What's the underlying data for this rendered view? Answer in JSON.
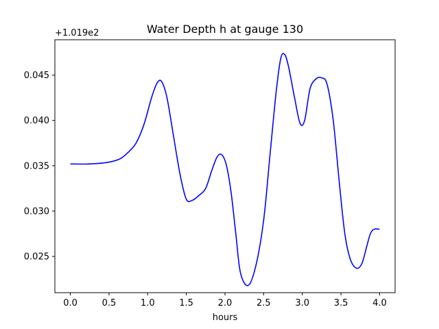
{
  "chart_data": {
    "type": "line",
    "title": "Water Depth h at gauge 130",
    "xlabel": "hours",
    "ylabel": "",
    "y_offset_label": "+1.019e2",
    "xlim": [
      -0.2,
      4.2
    ],
    "ylim": [
      0.021,
      0.0489
    ],
    "x_ticks": [
      0.0,
      0.5,
      1.0,
      1.5,
      2.0,
      2.5,
      3.0,
      3.5,
      4.0
    ],
    "x_tick_labels": [
      "0.0",
      "0.5",
      "1.0",
      "1.5",
      "2.0",
      "2.5",
      "3.0",
      "3.5",
      "4.0"
    ],
    "y_ticks": [
      0.025,
      0.03,
      0.035,
      0.04,
      0.045
    ],
    "y_tick_labels": [
      "0.025",
      "0.030",
      "0.035",
      "0.040",
      "0.045"
    ],
    "grid": false,
    "line_color": "#0000ff",
    "series": [
      {
        "x": [
          0.0,
          0.25,
          0.5,
          0.65,
          0.75,
          0.85,
          0.95,
          1.05,
          1.12,
          1.18,
          1.25,
          1.33,
          1.42,
          1.5,
          1.58,
          1.66,
          1.75,
          1.83,
          1.9,
          1.96,
          2.02,
          2.08,
          2.14,
          2.2,
          2.3,
          2.4,
          2.5,
          2.58,
          2.66,
          2.72,
          2.77,
          2.82,
          2.9,
          2.97,
          3.03,
          3.1,
          3.18,
          3.25,
          3.32,
          3.4,
          3.48,
          3.55,
          3.62,
          3.7,
          3.77,
          3.83,
          3.88,
          3.93,
          4.0
        ],
        "y": [
          0.0352,
          0.0352,
          0.0354,
          0.0358,
          0.0365,
          0.0375,
          0.0395,
          0.0425,
          0.0441,
          0.0443,
          0.0425,
          0.0385,
          0.034,
          0.0313,
          0.0312,
          0.0317,
          0.0325,
          0.0345,
          0.036,
          0.0362,
          0.035,
          0.032,
          0.0275,
          0.0232,
          0.0218,
          0.024,
          0.029,
          0.036,
          0.043,
          0.0468,
          0.0473,
          0.046,
          0.0425,
          0.0397,
          0.04,
          0.0435,
          0.0446,
          0.0447,
          0.044,
          0.04,
          0.033,
          0.0275,
          0.0247,
          0.0237,
          0.0242,
          0.026,
          0.0275,
          0.028,
          0.028
        ]
      }
    ]
  }
}
